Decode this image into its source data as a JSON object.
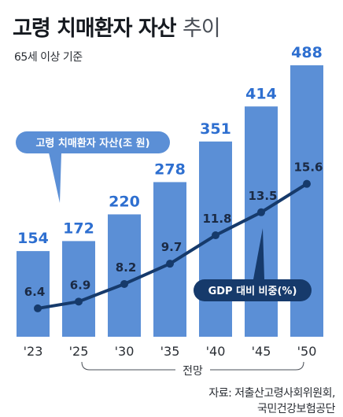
{
  "title_bold": "고령 치매환자 자산",
  "title_light": "추이",
  "subtitle": "65세 이상 기준",
  "source_line1": "자료: 저출산고령사회위원회,",
  "source_line2": "국민건강보험공단",
  "forecast_label": "전망",
  "chart_data": {
    "type": "bar",
    "categories": [
      "'23",
      "'25",
      "'30",
      "'35",
      "'40",
      "'45",
      "'50"
    ],
    "series": [
      {
        "name": "고령 치매환자 자산(조 원)",
        "type": "bar",
        "values": [
          154,
          172,
          220,
          278,
          351,
          414,
          488
        ]
      },
      {
        "name": "GDP 대비 비중(%)",
        "type": "line",
        "values": [
          6.4,
          6.9,
          8.2,
          9.7,
          11.8,
          13.5,
          15.6
        ]
      }
    ],
    "forecast_range": [
      "'25",
      "'50"
    ],
    "colors": {
      "bar": "#5b8fd6",
      "line": "#163a6b",
      "bar_label": "#2e6fd0"
    }
  }
}
